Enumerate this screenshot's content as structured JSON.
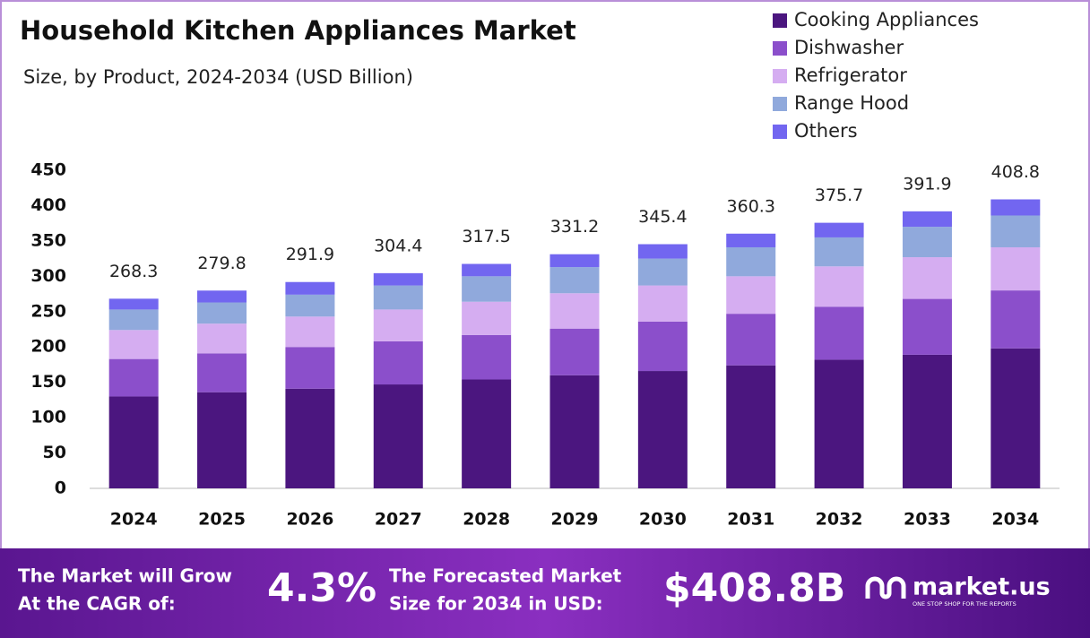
{
  "chart_data": {
    "type": "stacked-bar",
    "title": "Household Kitchen Appliances Market",
    "subtitle": "Size, by Product, 2024-2034 (USD Billion)",
    "categories": [
      "2024",
      "2025",
      "2026",
      "2027",
      "2028",
      "2029",
      "2030",
      "2031",
      "2032",
      "2033",
      "2034"
    ],
    "series": [
      {
        "name": "Cooking Appliances",
        "color": "#4b167f",
        "values": [
          130,
          136,
          141,
          147,
          154,
          160,
          166,
          174,
          182,
          189,
          198
        ]
      },
      {
        "name": "Dishwasher",
        "color": "#8b4fcb",
        "values": [
          53,
          55,
          59,
          61,
          63,
          66,
          70,
          73,
          75,
          79,
          82
        ]
      },
      {
        "name": "Refrigerator",
        "color": "#d5adf1",
        "values": [
          41,
          42,
          43,
          45,
          47,
          50,
          51,
          53,
          57,
          59,
          61
        ]
      },
      {
        "name": "Range Hood",
        "color": "#90a9dc",
        "values": [
          29,
          30,
          31,
          34,
          36,
          37,
          38,
          41,
          41,
          43,
          45
        ]
      },
      {
        "name": "Others",
        "color": "#7266f0",
        "values": [
          15.3,
          16.8,
          17.9,
          17.4,
          17.5,
          18.2,
          20.4,
          19.3,
          20.7,
          21.9,
          22.8
        ]
      }
    ],
    "totals": [
      268.3,
      279.8,
      291.9,
      304.4,
      317.5,
      331.2,
      345.4,
      360.3,
      375.7,
      391.9,
      408.8
    ],
    "ylim": [
      0,
      450
    ],
    "yticks": [
      0,
      50,
      100,
      150,
      200,
      250,
      300,
      350,
      400,
      450
    ],
    "legend": "top-right"
  },
  "footer": {
    "cagr_text": [
      "The Market will Grow",
      "At the CAGR of:"
    ],
    "cagr_value": "4.3%",
    "forecast_text": [
      "The Forecasted Market",
      "Size for 2034 in USD:"
    ],
    "forecast_value": "$408.8B",
    "brand": "market.us",
    "tagline": "ONE STOP SHOP FOR THE REPORTS"
  }
}
